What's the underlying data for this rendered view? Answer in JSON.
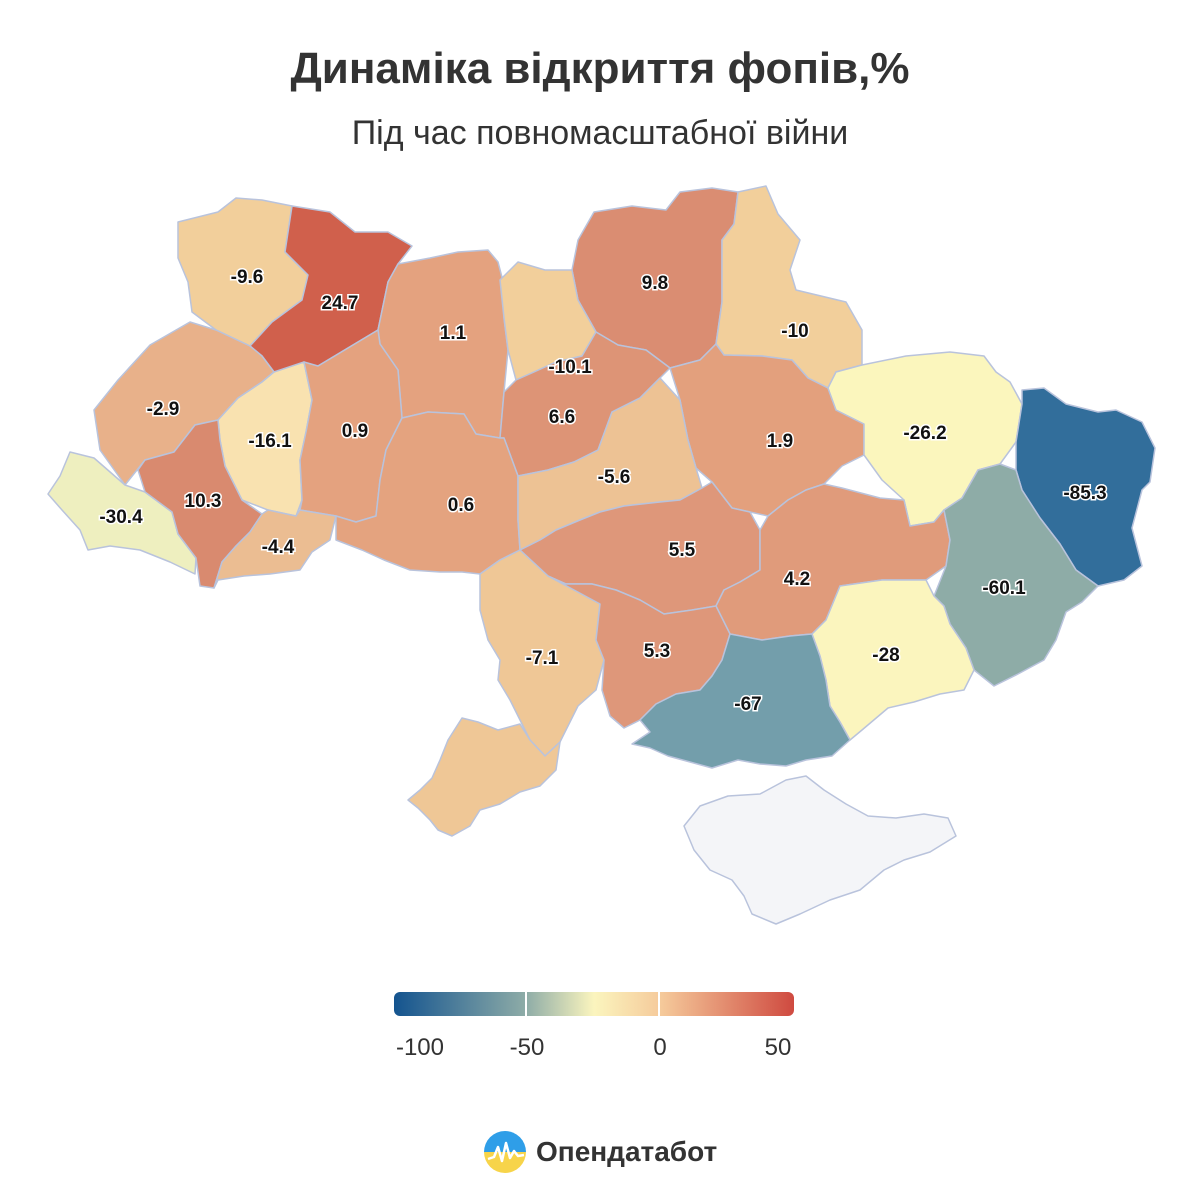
{
  "header": {
    "title": "Динаміка відкриття фопів,%",
    "subtitle": "Під час повномасштабної війни"
  },
  "map": {
    "regions": [
      {
        "value": -9.6,
        "color": "#f2cf9b"
      },
      {
        "value": 24.7,
        "color": "#d0604c"
      },
      {
        "value": 1.1,
        "color": "#e4a27f"
      },
      {
        "value": 9.8,
        "color": "#da8d72"
      },
      {
        "value": -10,
        "color": "#f2cf9b"
      },
      {
        "value": -2.9,
        "color": "#e8b18a"
      },
      {
        "value": -16.1,
        "color": "#f9e2b0"
      },
      {
        "value": 0.9,
        "color": "#e4a27f"
      },
      {
        "value": -10.1,
        "color": "#f2cf9b"
      },
      {
        "value": 6.6,
        "color": "#dd9476"
      },
      {
        "value": 1.9,
        "color": "#e3a07d"
      },
      {
        "value": -26.2,
        "color": "#fbf6bd"
      },
      {
        "value": -85.3,
        "color": "#326e9b"
      },
      {
        "value": -30.4,
        "color": "#eeefbf"
      },
      {
        "value": 10.3,
        "color": "#d98a6f"
      },
      {
        "value": -4.4,
        "color": "#ebbd92"
      },
      {
        "value": 0.6,
        "color": "#e4a37f"
      },
      {
        "value": -5.6,
        "color": "#edc294"
      },
      {
        "value": 5.5,
        "color": "#de977a"
      },
      {
        "value": 4.2,
        "color": "#e09b7b"
      },
      {
        "value": -60.1,
        "color": "#8eaca7"
      },
      {
        "value": -7.1,
        "color": "#efc796"
      },
      {
        "value": 5.3,
        "color": "#de977a"
      },
      {
        "value": -28,
        "color": "#fbf5be"
      },
      {
        "value": -67,
        "color": "#739eab"
      },
      {
        "value": null,
        "color": "#f4f5f8"
      }
    ]
  },
  "legend": {
    "labels": [
      "-100",
      "-50",
      "0",
      "50"
    ],
    "colors": [
      "#14548f",
      "#8eaca7",
      "#fbf5be",
      "#f5c99a",
      "#cf4a40"
    ]
  },
  "brand": {
    "name": "Опендатабот"
  }
}
